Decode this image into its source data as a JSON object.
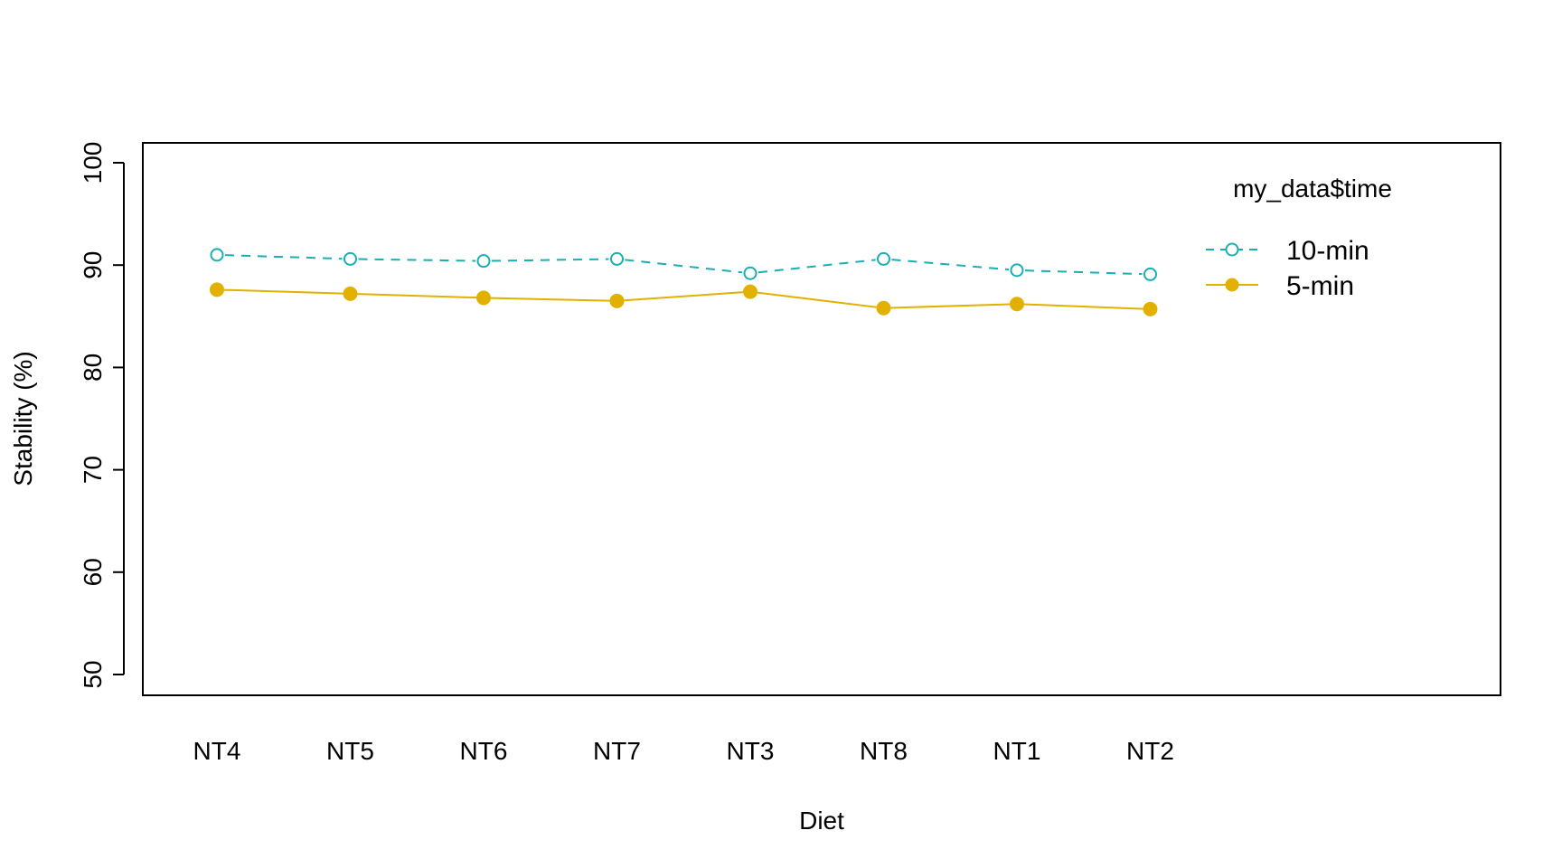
{
  "chart_data": {
    "type": "line",
    "xlabel": "Diet",
    "ylabel": "Stability (%)",
    "categories": [
      "NT4",
      "NT5",
      "NT6",
      "NT7",
      "NT3",
      "NT8",
      "NT1",
      "NT2"
    ],
    "ylim": [
      50,
      100
    ],
    "yticks": [
      50,
      60,
      70,
      80,
      90,
      100
    ],
    "grid": false,
    "legend": {
      "title": "my_data$time",
      "placement": "top-right"
    },
    "series": [
      {
        "name": "10-min",
        "values": [
          91.0,
          90.6,
          90.4,
          90.6,
          89.2,
          90.6,
          89.5,
          89.1
        ],
        "color": "#1aafb3",
        "line_style": "dashed",
        "marker": "open-circle"
      },
      {
        "name": "5-min",
        "values": [
          87.6,
          87.2,
          86.8,
          86.5,
          87.4,
          85.8,
          86.2,
          85.7
        ],
        "color": "#e2b100",
        "line_style": "solid",
        "marker": "filled-circle"
      }
    ]
  }
}
